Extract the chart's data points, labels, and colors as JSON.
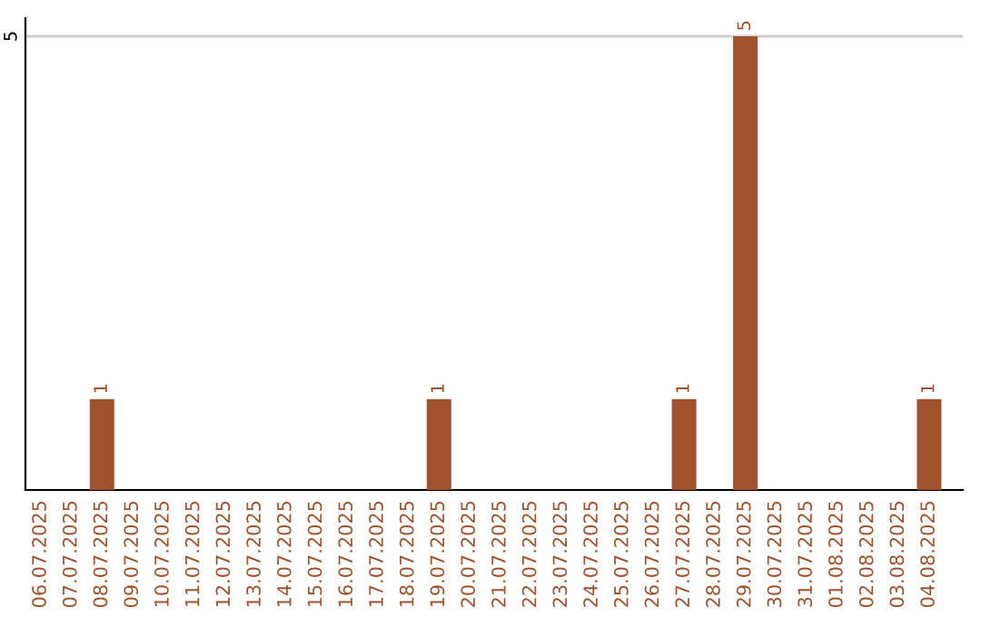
{
  "chart_data": {
    "type": "bar",
    "categories": [
      "06.07.2025",
      "07.07.2025",
      "08.07.2025",
      "09.07.2025",
      "10.07.2025",
      "11.07.2025",
      "12.07.2025",
      "13.07.2025",
      "14.07.2025",
      "15.07.2025",
      "16.07.2025",
      "17.07.2025",
      "18.07.2025",
      "19.07.2025",
      "20.07.2025",
      "21.07.2025",
      "22.07.2025",
      "23.07.2025",
      "24.07.2025",
      "25.07.2025",
      "26.07.2025",
      "27.07.2025",
      "28.07.2025",
      "29.07.2025",
      "30.07.2025",
      "31.07.2025",
      "01.08.2025",
      "02.08.2025",
      "03.08.2025",
      "04.08.2025"
    ],
    "values": [
      0,
      0,
      1,
      0,
      0,
      0,
      0,
      0,
      0,
      0,
      0,
      0,
      0,
      1,
      0,
      0,
      0,
      0,
      0,
      0,
      0,
      1,
      0,
      5,
      0,
      0,
      0,
      0,
      0,
      1
    ],
    "color": "#a0522d",
    "value_labels": [
      null,
      null,
      "1",
      null,
      null,
      null,
      null,
      null,
      null,
      null,
      null,
      null,
      null,
      "1",
      null,
      null,
      null,
      null,
      null,
      null,
      null,
      "1",
      null,
      "5",
      null,
      null,
      null,
      null,
      null,
      "1"
    ],
    "ylim": [
      0,
      5.2
    ],
    "yticks": [
      5
    ],
    "grid": "y"
  }
}
